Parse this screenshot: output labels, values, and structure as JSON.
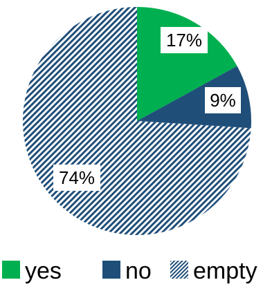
{
  "chart_data": {
    "type": "pie",
    "title": "",
    "legend_position": "bottom",
    "slices": [
      {
        "label": "yes",
        "value": 17,
        "value_label": "17%",
        "color": "#00b050",
        "pattern": "solid"
      },
      {
        "label": "no",
        "value": 9,
        "value_label": "9%",
        "color": "#1f4e79",
        "pattern": "solid"
      },
      {
        "label": "empty",
        "value": 74,
        "value_label": "74%",
        "color": "#1f4e79",
        "pattern": "diagonal-stripes"
      }
    ]
  }
}
